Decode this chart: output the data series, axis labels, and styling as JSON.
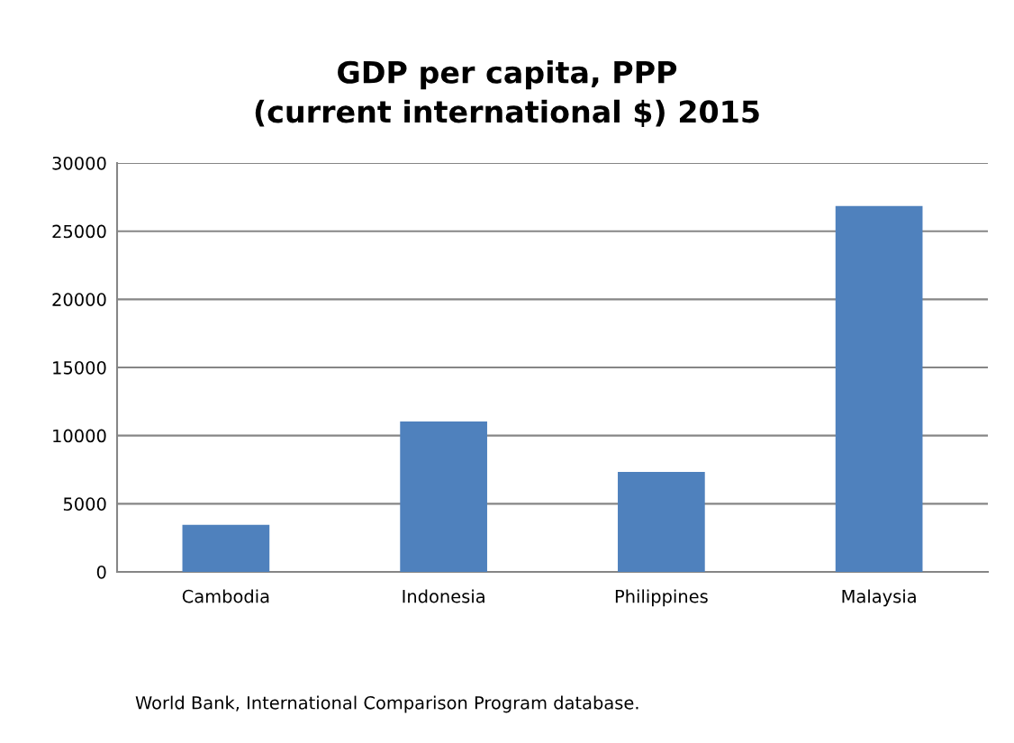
{
  "chart_data": {
    "type": "bar",
    "title": "GDP per capita, PPP\n(current international $) 2015",
    "categories": [
      "Cambodia",
      "Indonesia",
      "Philippines",
      "Malaysia"
    ],
    "values": [
      3460,
      11030,
      7330,
      26850
    ],
    "color": "#4f81bd",
    "ylim": [
      0,
      30000
    ],
    "yticks": [
      0,
      5000,
      10000,
      15000,
      20000,
      25000,
      30000
    ],
    "grid": "y",
    "annotations": [
      "World Bank, International Comparison Program database."
    ]
  }
}
